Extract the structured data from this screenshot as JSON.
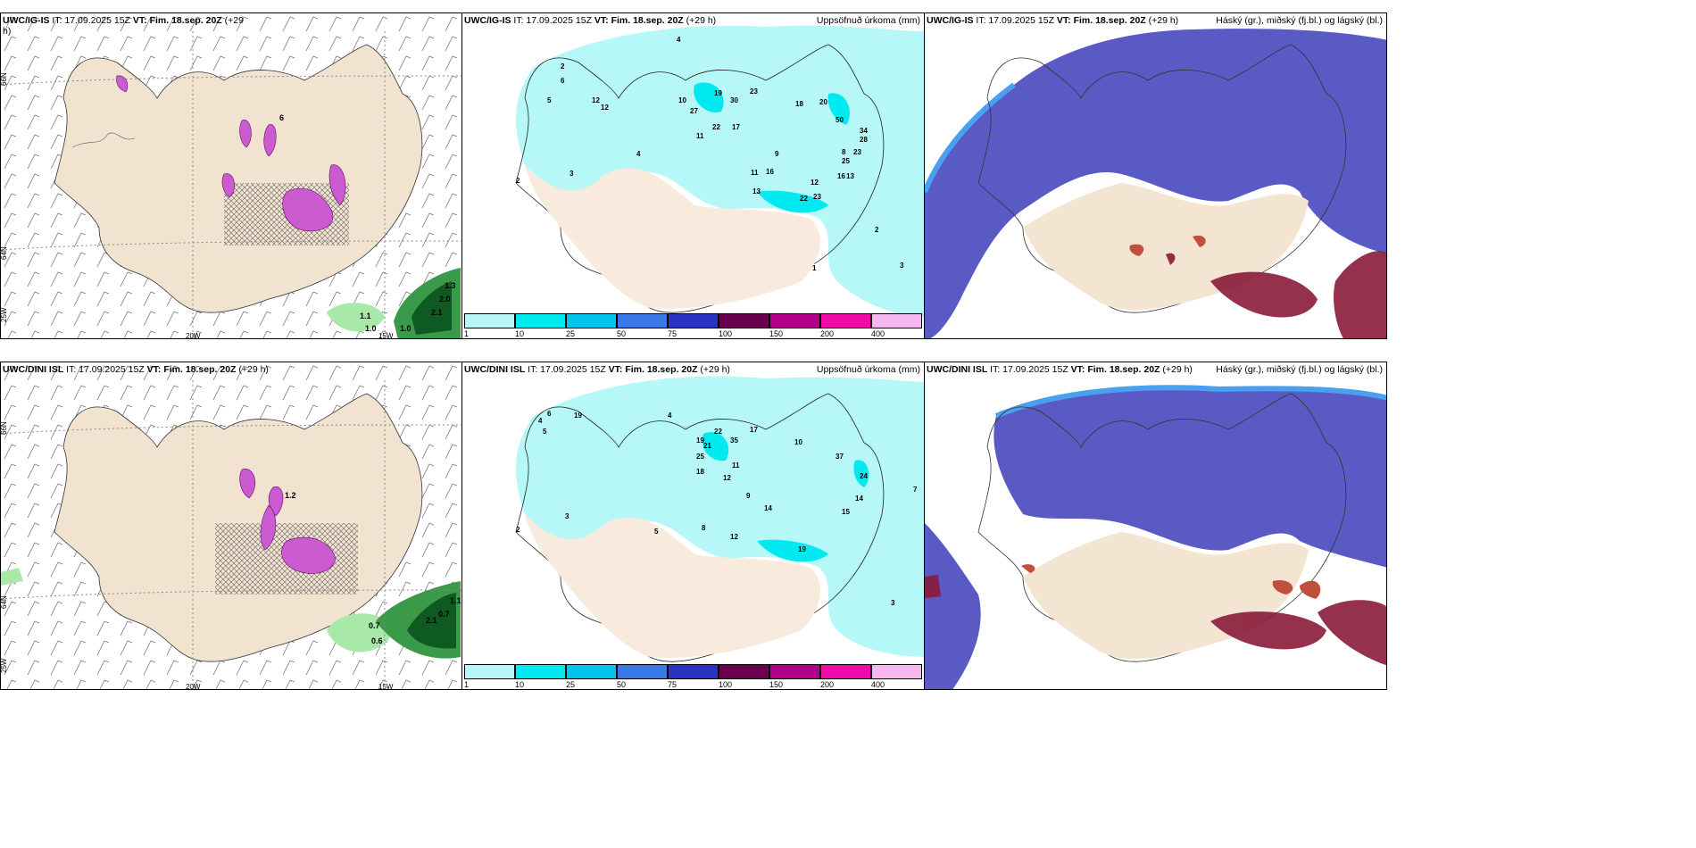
{
  "panels": [
    {
      "id": "p1",
      "title_model": "UWC/IG-IS",
      "title_rest": " IT: 17.09.2025 15Z ",
      "title_vt": "VT: Fim. 18.sep. 20Z",
      "title_lead": " (+29",
      "title_lead2": "h)",
      "right": ""
    },
    {
      "id": "p2",
      "title_model": "UWC/IG-IS",
      "title_rest": " IT: 17.09.2025 15Z ",
      "title_vt": "VT: Fim. 18.sep. 20Z",
      "title_lead": " (+29 h)",
      "right": "Uppsöfnuð úrkoma (mm)"
    },
    {
      "id": "p3",
      "title_model": "UWC/IG-IS",
      "title_rest": " IT: 17.09.2025 15Z ",
      "title_vt": "VT: Fim. 18.sep. 20Z",
      "title_lead": " (+29 h)",
      "right": "Háský (gr.), miðský (fj.bl.) og lágský (bl.)"
    },
    {
      "id": "p4",
      "title_model": "UWC/DINI ISL",
      "title_rest": " IT: 17.09.2025 15Z ",
      "title_vt": "VT: Fim. 18.sep. 20Z",
      "title_lead": " (+29 h)",
      "right": ""
    },
    {
      "id": "p5",
      "title_model": "UWC/DINI ISL",
      "title_rest": " IT: 17.09.2025 15Z ",
      "title_vt": "VT: Fim. 18.sep. 20Z",
      "title_lead": " (+29 h)",
      "right": "Uppsöfnuð úrkoma (mm)"
    },
    {
      "id": "p6",
      "title_model": "UWC/DINI ISL",
      "title_rest": " IT: 17.09.2025 15Z ",
      "title_vt": "VT: Fim. 18.sep. 20Z",
      "title_lead": " (+29 h)",
      "right": "Háský (gr.), miðský (fj.bl.) og lágský (bl.)"
    }
  ],
  "grid_labels": {
    "lat66": "66N",
    "lat64": "64N",
    "lon25": "25W",
    "lon20": "20W",
    "lon15": "15W"
  },
  "colorbar": {
    "ticks": [
      "1",
      "10",
      "25",
      "50",
      "75",
      "100",
      "150",
      "200",
      "400"
    ],
    "colors": [
      "#b6f8f8",
      "#00e8f0",
      "#00c4ec",
      "#3a78e8",
      "#2a34c0",
      "#6a0050",
      "#b0008a",
      "#f00aa8",
      "#f6b6f0"
    ]
  },
  "p1_values": [
    "6",
    "1.1",
    "1.0",
    "1.0",
    "2.0",
    "2.1",
    "1.3"
  ],
  "p4_values": [
    "1.2",
    "0.7",
    "0.6",
    "0.7",
    "1.1",
    "2.1"
  ],
  "p2_numbers": [
    "4",
    "2",
    "6",
    "5",
    "12",
    "12",
    "19",
    "30",
    "23",
    "10",
    "27",
    "11",
    "22",
    "17",
    "18",
    "20",
    "50",
    "34",
    "28",
    "23",
    "25",
    "16",
    "13",
    "13",
    "22",
    "23",
    "12",
    "11",
    "16",
    "9",
    "8",
    "2",
    "3",
    "4",
    "1",
    "2",
    "3"
  ],
  "p5_numbers": [
    "4",
    "6",
    "5",
    "19",
    "4",
    "22",
    "35",
    "17",
    "19",
    "21",
    "25",
    "18",
    "10",
    "37",
    "24",
    "14",
    "12",
    "11",
    "9",
    "14",
    "19",
    "15",
    "2",
    "3",
    "5",
    "8",
    "12",
    "3",
    "7"
  ]
}
